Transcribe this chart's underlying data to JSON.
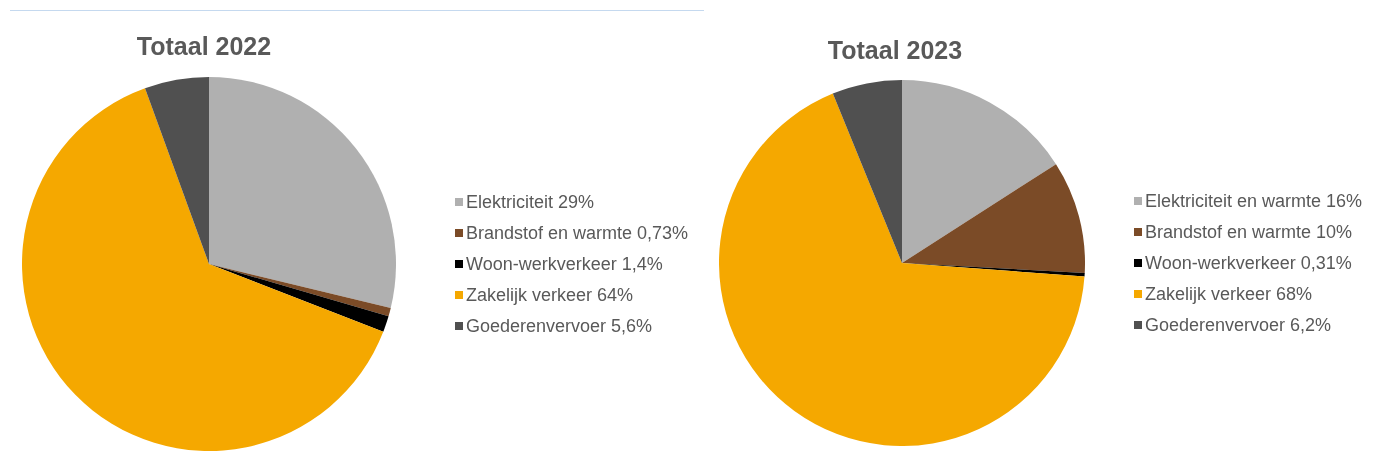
{
  "chart_data": [
    {
      "type": "pie",
      "title": "Totaal 2022",
      "categories": [
        "Elektriciteit 29%",
        "Brandstof en warmte 0,73%",
        "Woon-werkverkeer 1,4%",
        "Zakelijk verkeer 64%",
        "Goederenvervoer 5,6%"
      ],
      "values": [
        29,
        0.73,
        1.4,
        64,
        5.6
      ],
      "colors": [
        "#b0b0b0",
        "#7b4b27",
        "#000000",
        "#f5a800",
        "#505050"
      ],
      "legend": "right"
    },
    {
      "type": "pie",
      "title": "Totaal 2023",
      "categories": [
        "Elektriciteit en warmte 16%",
        "Brandstof en warmte 10%",
        "Woon-werkverkeer 0,31%",
        "Zakelijk verkeer 68%",
        "Goederenvervoer 6,2%"
      ],
      "values": [
        16,
        10,
        0.31,
        68,
        6.2
      ],
      "colors": [
        "#b0b0b0",
        "#7b4b27",
        "#000000",
        "#f5a800",
        "#505050"
      ],
      "legend": "right"
    }
  ]
}
